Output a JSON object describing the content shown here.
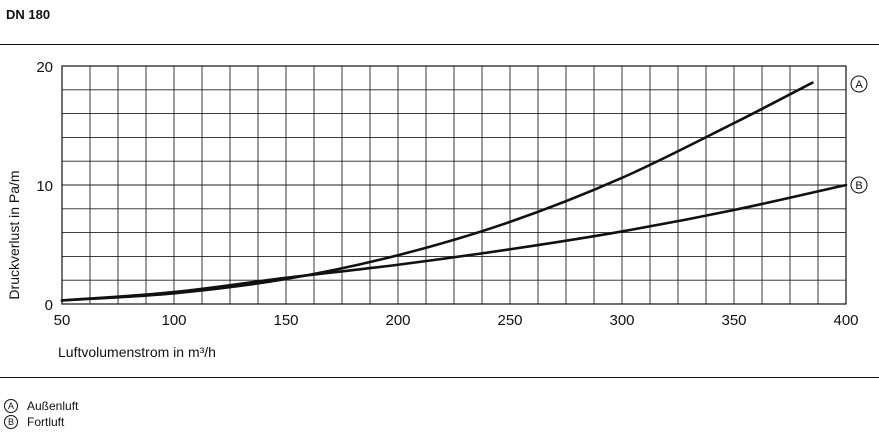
{
  "header": {
    "title": "DN 180"
  },
  "chart_data": {
    "type": "line",
    "xlabel": "Luftvolumenstrom in m³/h",
    "ylabel": "Druckverlust in Pa/m",
    "xlim": [
      50,
      400
    ],
    "ylim": [
      0,
      20
    ],
    "x_ticks": [
      50,
      100,
      150,
      200,
      250,
      300,
      350,
      400
    ],
    "y_ticks": [
      0,
      10,
      20
    ],
    "x_grid_step": 12.5,
    "y_grid_step": 2,
    "grid": true,
    "series": [
      {
        "key": "A",
        "name": "Außenluft",
        "x": [
          50,
          100,
          150,
          200,
          250,
          300,
          350,
          385
        ],
        "y": [
          0.3,
          0.9,
          2.1,
          4.1,
          6.9,
          10.6,
          15.2,
          18.6
        ]
      },
      {
        "key": "B",
        "name": "Fortluft",
        "x": [
          50,
          100,
          150,
          200,
          250,
          300,
          350,
          400
        ],
        "y": [
          0.3,
          1.0,
          2.2,
          3.3,
          4.6,
          6.1,
          7.9,
          10.0
        ]
      }
    ],
    "color": "#111111"
  },
  "legend": [
    {
      "key": "A",
      "label": "Außenluft"
    },
    {
      "key": "B",
      "label": "Fortluft"
    }
  ]
}
